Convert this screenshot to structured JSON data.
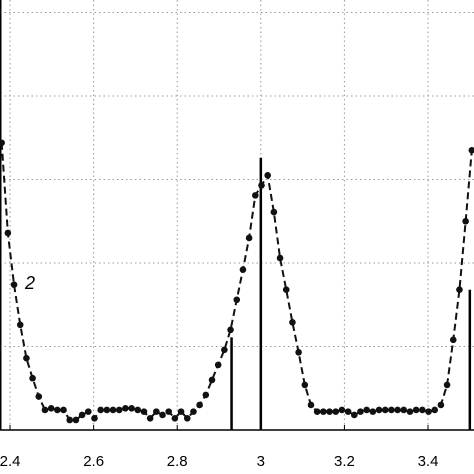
{
  "chart_data": {
    "type": "line",
    "x": [
      2.38,
      2.3948,
      2.4096,
      2.4244,
      2.4392,
      2.454,
      2.4688,
      2.4836,
      2.4984,
      2.5132,
      2.528,
      2.5428,
      2.5576,
      2.5724,
      2.5872,
      2.602,
      2.6168,
      2.6316,
      2.6464,
      2.6612,
      2.676,
      2.6908,
      2.7056,
      2.7204,
      2.7352,
      2.75,
      2.7648,
      2.7796,
      2.7944,
      2.8092,
      2.824,
      2.8388,
      2.8536,
      2.8684,
      2.8832,
      2.898,
      2.9128,
      2.9276,
      2.9424,
      2.9572,
      2.972,
      2.9868,
      3.0016,
      3.0164,
      3.0312,
      3.046,
      3.0608,
      3.0756,
      3.0904,
      3.1052,
      3.12,
      3.1348,
      3.1496,
      3.1644,
      3.1792,
      3.194,
      3.2088,
      3.2236,
      3.2384,
      3.2532,
      3.268,
      3.2828,
      3.2976,
      3.3124,
      3.3272,
      3.342,
      3.3568,
      3.3716,
      3.3864,
      3.4012,
      3.416,
      3.4308,
      3.4456,
      3.4604,
      3.4752,
      3.49,
      3.5048
    ],
    "series": [
      {
        "color": "#111111",
        "values": [
          3.44,
          2.36,
          1.74,
          1.26,
          0.86,
          0.62,
          0.4,
          0.24,
          0.26,
          0.24,
          0.24,
          0.12,
          0.12,
          0.18,
          0.22,
          0.14,
          0.24,
          0.24,
          0.24,
          0.24,
          0.26,
          0.26,
          0.24,
          0.22,
          0.14,
          0.22,
          0.18,
          0.22,
          0.14,
          0.22,
          0.14,
          0.22,
          0.3,
          0.42,
          0.6,
          0.78,
          0.96,
          1.2,
          1.56,
          1.92,
          2.3,
          2.81,
          2.93,
          3.05,
          2.61,
          2.06,
          1.68,
          1.29,
          0.93,
          0.54,
          0.3,
          0.22,
          0.22,
          0.22,
          0.22,
          0.24,
          0.22,
          0.18,
          0.22,
          0.24,
          0.22,
          0.24,
          0.24,
          0.24,
          0.24,
          0.24,
          0.22,
          0.24,
          0.24,
          0.22,
          0.24,
          0.3,
          0.54,
          1.08,
          1.68,
          2.5,
          3.35
        ]
      }
    ],
    "stems": {
      "color": "#000000",
      "x": [
        2.93,
        3.0,
        3.5
      ],
      "values": [
        1.11,
        3.26,
        1.68
      ]
    },
    "annotation": "2",
    "xlim": [
      2.376,
      3.51
    ],
    "ylim": [
      0,
      5.15
    ],
    "xticks": [
      2.4,
      2.6,
      2.8,
      3,
      3.2,
      3.4
    ],
    "ygrid": [
      1,
      2,
      3,
      4,
      5
    ],
    "grid": true
  }
}
